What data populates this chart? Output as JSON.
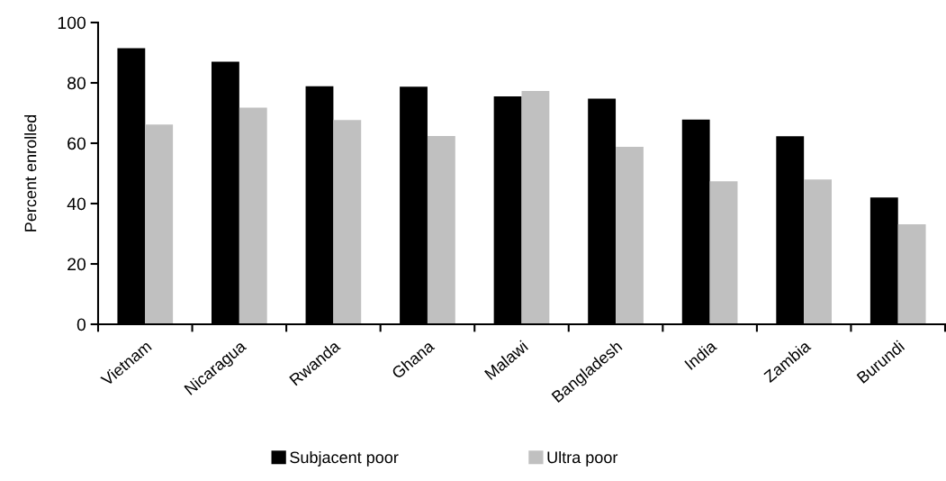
{
  "chart_data": {
    "type": "bar",
    "ylabel": "Percent enrolled",
    "categories": [
      "Vietnam",
      "Nicaragua",
      "Rwanda",
      "Ghana",
      "Malawi",
      "Bangladesh",
      "India",
      "Zambia",
      "Burundi"
    ],
    "series": [
      {
        "name": "Subjacent poor",
        "color": "#000000",
        "values": [
          91.5,
          87.0,
          78.9,
          78.7,
          75.5,
          74.8,
          67.8,
          62.3,
          42.0
        ]
      },
      {
        "name": "Ultra poor",
        "color": "#c0c0c0",
        "values": [
          66.2,
          71.8,
          67.7,
          62.4,
          77.3,
          58.8,
          47.4,
          48.0,
          33.1
        ]
      }
    ],
    "ylim": [
      0,
      100
    ],
    "yticks": [
      0,
      20,
      40,
      60,
      80,
      100
    ],
    "grid": false,
    "legend": "bottom"
  }
}
